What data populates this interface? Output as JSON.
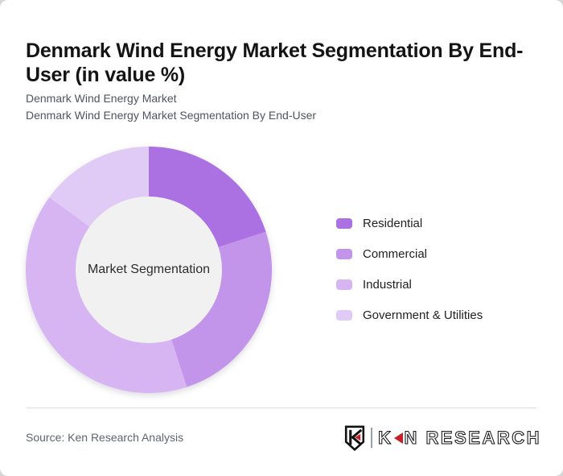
{
  "header": {
    "title": "Denmark Wind Energy Market Segmentation By End-User (in value %)",
    "subtitle_line1": "Denmark Wind Energy Market",
    "subtitle_line2": "Denmark Wind Energy Market Segmentation By End-User"
  },
  "chart_data": {
    "type": "pie",
    "style": "donut",
    "title": "Denmark Wind Energy Market Segmentation By End-User (in value %)",
    "center_label": "Market Segmentation",
    "values_unit": "value %",
    "start_angle_deg": 0,
    "direction": "clockwise",
    "legend_position": "right",
    "inner_circle_color": "#f1f1f1",
    "segments": [
      {
        "label": "Residential",
        "value": 20,
        "color": "#ab70e2"
      },
      {
        "label": "Commercial",
        "value": 25,
        "color": "#c294ea"
      },
      {
        "label": "Industrial",
        "value": 40,
        "color": "#d7b5f3"
      },
      {
        "label": "Government & Utilities",
        "value": 15,
        "color": "#e0cbf6"
      }
    ]
  },
  "footer": {
    "source": "Source: Ken Research Analysis",
    "logo": {
      "shield_letter": "K",
      "wordmark_first_letter": "K",
      "wordmark_rest": "N RESEARCH",
      "accent_color": "#c5202b"
    }
  }
}
